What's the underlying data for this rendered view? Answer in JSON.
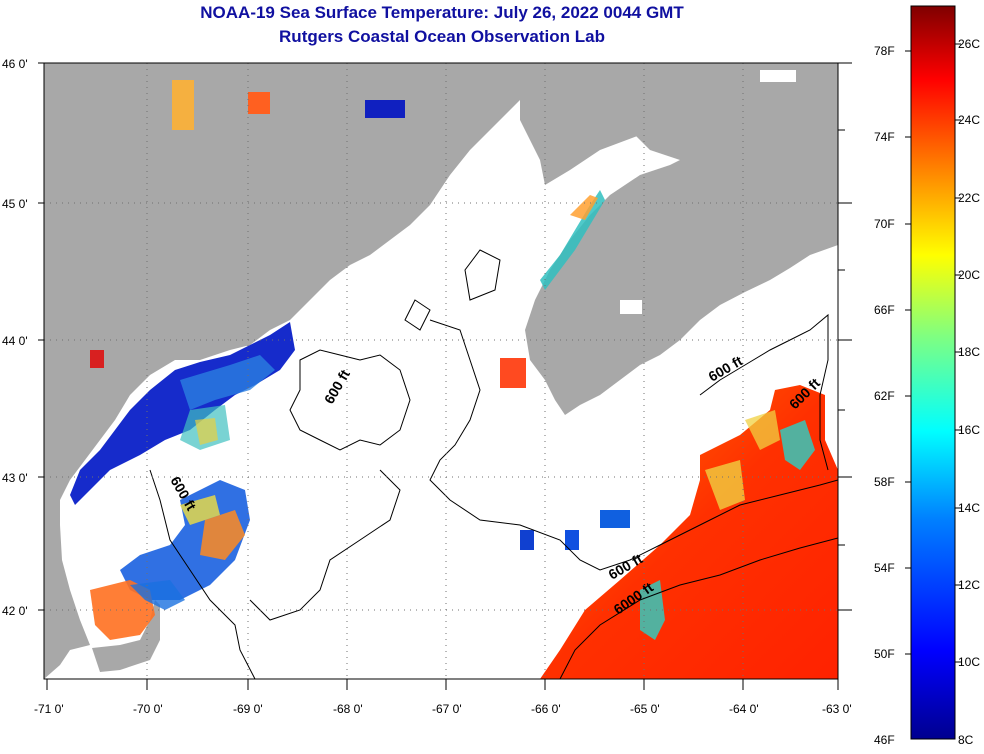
{
  "header": {
    "title": "NOAA-19 Sea Surface Temperature:  July 26, 2022 0044 GMT",
    "subtitle": "Rutgers Coastal Ocean Observation Lab"
  },
  "axes": {
    "latitudes": [
      "46 0'",
      "45 0'",
      "44 0'",
      "43 0'",
      "42 0'"
    ],
    "longitudes": [
      "-71 0'",
      "-70 0'",
      "-69 0'",
      "-68 0'",
      "-67 0'",
      "-66 0'",
      "-65 0'",
      "-64 0'",
      "-63 0'"
    ]
  },
  "contours": {
    "labels": [
      "600 ft",
      "600 ft",
      "600 ft",
      "600 ft",
      "600 ft",
      "6000 ft"
    ]
  },
  "colorbar": {
    "fahrenheit": [
      "78F",
      "74F",
      "70F",
      "66F",
      "62F",
      "58F",
      "54F",
      "50F",
      "46F"
    ],
    "celsius": [
      "26C",
      "24C",
      "22C",
      "20C",
      "18C",
      "16C",
      "14C",
      "12C",
      "10C",
      "8C"
    ],
    "colors": [
      "#7f0000",
      "#ff0000",
      "#ff8000",
      "#ffff00",
      "#80ff80",
      "#00ffff",
      "#0080ff",
      "#0000ff",
      "#00008f"
    ]
  },
  "colors": {
    "land": "#a8a8a8",
    "title": "#1010a0"
  }
}
